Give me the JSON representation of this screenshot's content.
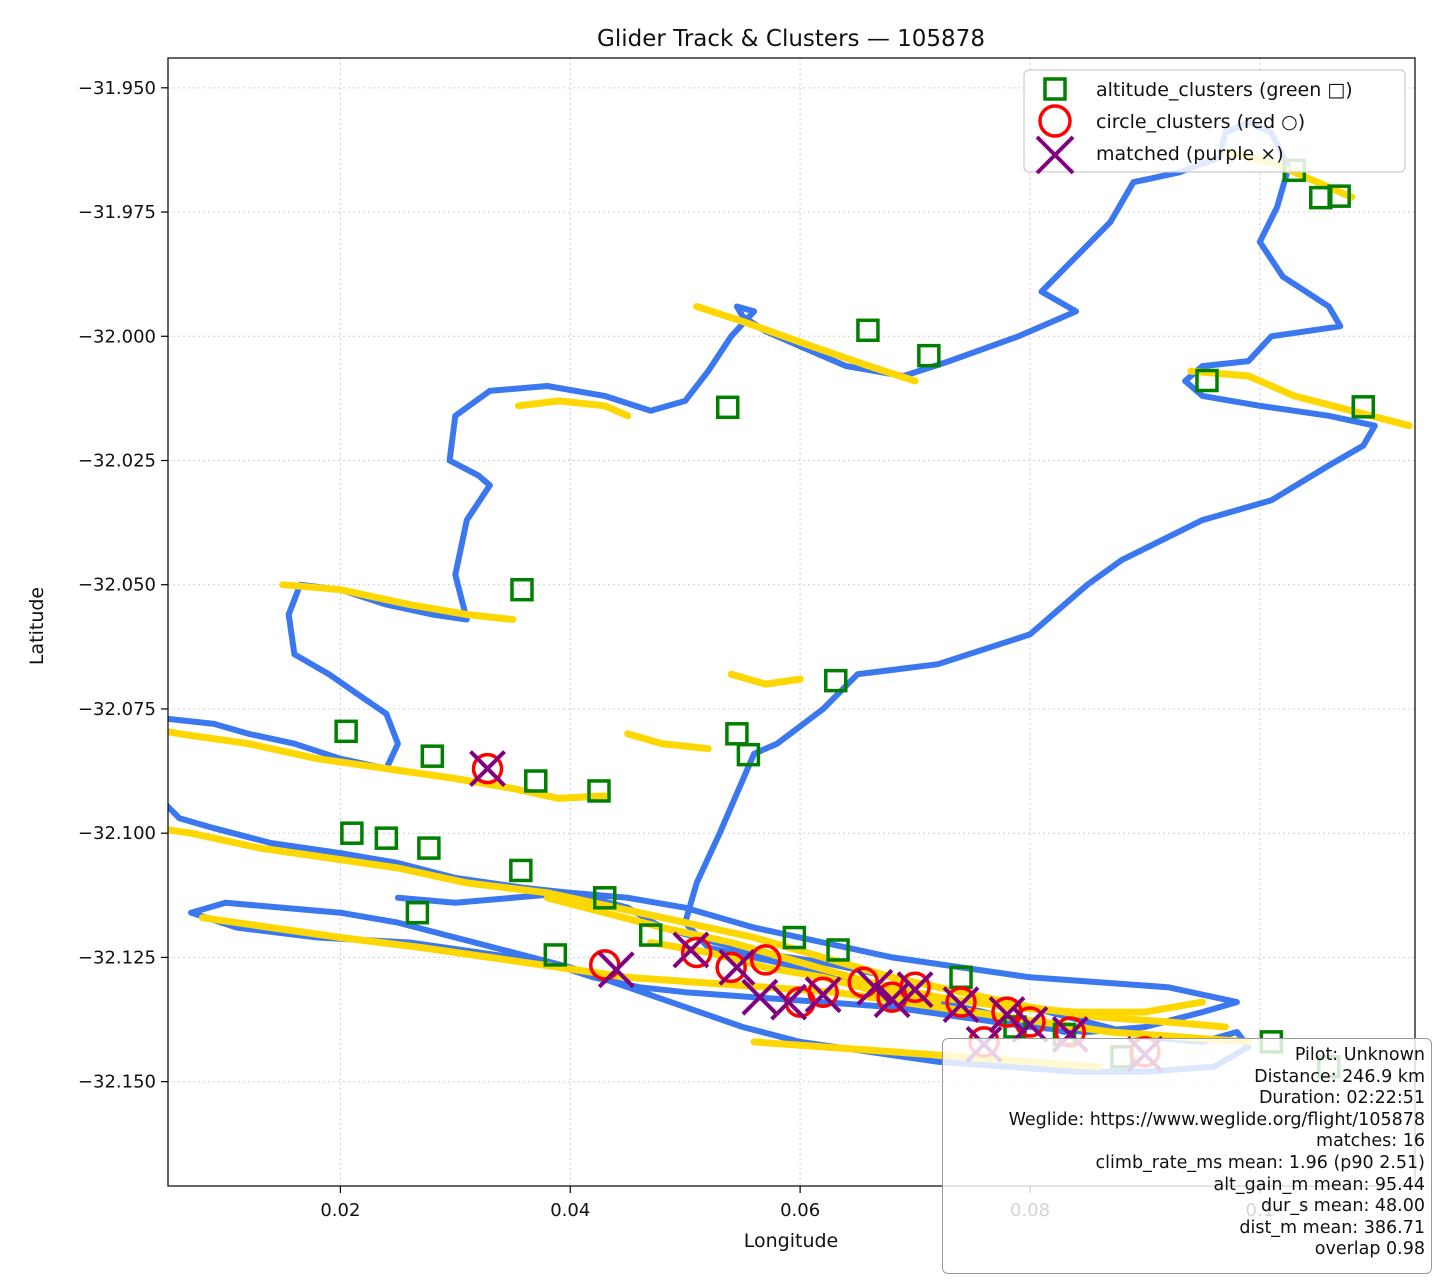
{
  "chart_data": {
    "type": "scatter",
    "title": "Glider Track & Clusters — 105878",
    "xlabel": "Longitude",
    "ylabel": "Latitude",
    "xlim": [
      0.005,
      0.1135
    ],
    "ylim": [
      -32.171,
      -31.944
    ],
    "x_ticks": [
      0.02,
      0.04,
      0.06,
      0.08,
      0.1
    ],
    "x_tick_labels": [
      "0.02",
      "0.04",
      "0.06",
      "0.08",
      "0.1"
    ],
    "y_ticks": [
      -31.95,
      -31.975,
      -32.0,
      -32.025,
      -32.05,
      -32.075,
      -32.1,
      -32.125,
      -32.15
    ],
    "y_tick_labels": [
      "−31.950",
      "−31.975",
      "−32.000",
      "−32.025",
      "−32.050",
      "−32.075",
      "−32.100",
      "−32.125",
      "−32.150"
    ],
    "grid": true,
    "legend_position": "top-right",
    "colors": {
      "track": "#3b78f0",
      "thermal": "#ffd700",
      "altitude_clusters": "#007f00",
      "circle_clusters": "#ff0000",
      "matched": "#800080"
    },
    "track": [
      [
        0.083,
        -32.14
      ],
      [
        0.076,
        -32.136
      ],
      [
        0.07,
        -32.133
      ],
      [
        0.065,
        -32.13
      ],
      [
        0.06,
        -32.127
      ],
      [
        0.056,
        -32.125
      ],
      [
        0.052,
        -32.123
      ],
      [
        0.05,
        -32.118
      ],
      [
        0.051,
        -32.11
      ],
      [
        0.053,
        -32.1
      ],
      [
        0.0545,
        -32.092
      ],
      [
        0.056,
        -32.084
      ],
      [
        0.058,
        -32.082
      ],
      [
        0.062,
        -32.075
      ],
      [
        0.065,
        -32.068
      ],
      [
        0.072,
        -32.066
      ],
      [
        0.08,
        -32.06
      ],
      [
        0.085,
        -32.05
      ],
      [
        0.088,
        -32.045
      ],
      [
        0.095,
        -32.037
      ],
      [
        0.101,
        -32.033
      ],
      [
        0.106,
        -32.026
      ],
      [
        0.109,
        -32.022
      ],
      [
        0.11,
        -32.018
      ],
      [
        0.106,
        -32.016
      ],
      [
        0.1,
        -32.014
      ],
      [
        0.095,
        -32.012
      ],
      [
        0.0935,
        -32.009
      ],
      [
        0.095,
        -32.006
      ],
      [
        0.099,
        -32.005
      ],
      [
        0.101,
        -32.0
      ],
      [
        0.104,
        -31.999
      ],
      [
        0.107,
        -31.998
      ],
      [
        0.106,
        -31.994
      ],
      [
        0.102,
        -31.988
      ],
      [
        0.1,
        -31.981
      ],
      [
        0.1015,
        -31.974
      ],
      [
        0.1025,
        -31.966
      ],
      [
        0.101,
        -31.959
      ],
      [
        0.099,
        -31.957
      ],
      [
        0.097,
        -31.959
      ],
      [
        0.0965,
        -31.964
      ],
      [
        0.093,
        -31.967
      ],
      [
        0.089,
        -31.969
      ],
      [
        0.087,
        -31.977
      ],
      [
        0.084,
        -31.984
      ],
      [
        0.081,
        -31.991
      ],
      [
        0.084,
        -31.995
      ],
      [
        0.079,
        -32.0
      ],
      [
        0.073,
        -32.005
      ],
      [
        0.069,
        -32.008
      ],
      [
        0.064,
        -32.006
      ],
      [
        0.06,
        -32.002
      ],
      [
        0.057,
        -31.999
      ],
      [
        0.055,
        -31.996
      ],
      [
        0.0545,
        -31.994
      ],
      [
        0.056,
        -31.995
      ],
      [
        0.054,
        -32.0
      ],
      [
        0.052,
        -32.007
      ],
      [
        0.05,
        -32.013
      ],
      [
        0.047,
        -32.015
      ],
      [
        0.043,
        -32.012
      ],
      [
        0.038,
        -32.01
      ],
      [
        0.033,
        -32.011
      ],
      [
        0.03,
        -32.016
      ],
      [
        0.0295,
        -32.025
      ],
      [
        0.032,
        -32.028
      ],
      [
        0.033,
        -32.03
      ],
      [
        0.031,
        -32.037
      ],
      [
        0.03,
        -32.048
      ],
      [
        0.031,
        -32.057
      ],
      [
        0.028,
        -32.056
      ],
      [
        0.024,
        -32.054
      ],
      [
        0.02,
        -32.051
      ],
      [
        0.0165,
        -32.05
      ],
      [
        0.0155,
        -32.056
      ],
      [
        0.016,
        -32.064
      ],
      [
        0.019,
        -32.068
      ],
      [
        0.0215,
        -32.072
      ],
      [
        0.024,
        -32.076
      ],
      [
        0.025,
        -32.082
      ],
      [
        0.024,
        -32.087
      ],
      [
        0.02,
        -32.085
      ],
      [
        0.016,
        -32.082
      ],
      [
        0.012,
        -32.08
      ],
      [
        0.009,
        -32.078
      ],
      [
        0.005,
        -32.077
      ],
      [
        0.003,
        -32.08
      ],
      [
        -0.0015,
        -32.084
      ],
      [
        0.003,
        -32.09
      ],
      [
        0.006,
        -32.097
      ],
      [
        0.009,
        -32.099
      ],
      [
        0.014,
        -32.102
      ],
      [
        0.02,
        -32.104
      ],
      [
        0.025,
        -32.106
      ],
      [
        0.03,
        -32.109
      ],
      [
        0.036,
        -32.111
      ],
      [
        0.04,
        -32.112
      ],
      [
        0.045,
        -32.115
      ],
      [
        0.048,
        -32.119
      ],
      [
        0.051,
        -32.121
      ],
      [
        0.056,
        -32.124
      ],
      [
        0.062,
        -32.126
      ],
      [
        0.068,
        -32.129
      ],
      [
        0.074,
        -32.132
      ],
      [
        0.08,
        -32.135
      ],
      [
        0.085,
        -32.138
      ],
      [
        0.09,
        -32.141
      ],
      [
        0.095,
        -32.142
      ],
      [
        0.098,
        -32.14
      ],
      [
        0.099,
        -32.143
      ],
      [
        0.096,
        -32.147
      ],
      [
        0.09,
        -32.148
      ],
      [
        0.084,
        -32.148
      ],
      [
        0.078,
        -32.147
      ],
      [
        0.072,
        -32.146
      ],
      [
        0.066,
        -32.144
      ],
      [
        0.06,
        -32.142
      ],
      [
        0.055,
        -32.139
      ],
      [
        0.05,
        -32.135
      ],
      [
        0.045,
        -32.131
      ],
      [
        0.04,
        -32.127
      ],
      [
        0.035,
        -32.124
      ],
      [
        0.03,
        -32.121
      ],
      [
        0.025,
        -32.118
      ],
      [
        0.02,
        -32.116
      ],
      [
        0.015,
        -32.115
      ],
      [
        0.01,
        -32.114
      ],
      [
        0.007,
        -32.116
      ],
      [
        0.011,
        -32.119
      ],
      [
        0.018,
        -32.121
      ],
      [
        0.026,
        -32.122
      ],
      [
        0.032,
        -32.124
      ],
      [
        0.038,
        -32.126
      ],
      [
        0.042,
        -32.129
      ],
      [
        0.046,
        -32.131
      ],
      [
        0.05,
        -32.132
      ],
      [
        0.056,
        -32.133
      ],
      [
        0.062,
        -32.134
      ],
      [
        0.068,
        -32.135
      ],
      [
        0.074,
        -32.137
      ],
      [
        0.08,
        -32.139
      ],
      [
        0.085,
        -32.14
      ],
      [
        0.09,
        -32.139
      ],
      [
        0.095,
        -32.136
      ],
      [
        0.098,
        -32.134
      ],
      [
        0.092,
        -32.131
      ],
      [
        0.086,
        -32.13
      ],
      [
        0.08,
        -32.129
      ],
      [
        0.074,
        -32.127
      ],
      [
        0.068,
        -32.125
      ],
      [
        0.062,
        -32.122
      ],
      [
        0.056,
        -32.119
      ],
      [
        0.05,
        -32.115
      ],
      [
        0.045,
        -32.113
      ],
      [
        0.04,
        -32.112
      ],
      [
        0.035,
        -32.113
      ],
      [
        0.03,
        -32.114
      ],
      [
        0.025,
        -32.113
      ]
    ],
    "thermals": [
      [
        [
          0.001,
          -32.078
        ],
        [
          0.006,
          -32.08
        ],
        [
          0.012,
          -32.082
        ],
        [
          0.018,
          -32.085
        ],
        [
          0.024,
          -32.087
        ],
        [
          0.03,
          -32.089
        ],
        [
          0.035,
          -32.091
        ],
        [
          0.039,
          -32.093
        ],
        [
          0.043,
          -32.0925
        ]
      ],
      [
        [
          0.015,
          -32.05
        ],
        [
          0.02,
          -32.051
        ],
        [
          0.026,
          -32.054
        ],
        [
          0.031,
          -32.056
        ],
        [
          0.035,
          -32.057
        ]
      ],
      [
        [
          0.0355,
          -32.014
        ],
        [
          0.039,
          -32.013
        ],
        [
          0.043,
          -32.014
        ],
        [
          0.045,
          -32.016
        ]
      ],
      [
        [
          0.051,
          -31.994
        ],
        [
          0.055,
          -31.997
        ],
        [
          0.061,
          -32.002
        ],
        [
          0.066,
          -32.006
        ],
        [
          0.07,
          -32.009
        ]
      ],
      [
        [
          0.094,
          -32.007
        ],
        [
          0.099,
          -32.008
        ],
        [
          0.103,
          -32.012
        ],
        [
          0.108,
          -32.015
        ],
        [
          0.113,
          -32.018
        ]
      ],
      [
        [
          0.097,
          -31.963
        ],
        [
          0.101,
          -31.965
        ],
        [
          0.105,
          -31.969
        ],
        [
          0.108,
          -31.972
        ]
      ],
      [
        [
          0.054,
          -32.068
        ],
        [
          0.057,
          -32.07
        ],
        [
          0.06,
          -32.069
        ]
      ],
      [
        [
          0.045,
          -32.08
        ],
        [
          0.048,
          -32.082
        ],
        [
          0.052,
          -32.083
        ]
      ],
      [
        [
          0.001,
          -32.098
        ],
        [
          0.007,
          -32.1
        ],
        [
          0.013,
          -32.103
        ],
        [
          0.019,
          -32.105
        ],
        [
          0.025,
          -32.107
        ],
        [
          0.031,
          -32.11
        ],
        [
          0.038,
          -32.112
        ],
        [
          0.044,
          -32.115
        ],
        [
          0.05,
          -32.118
        ],
        [
          0.056,
          -32.121
        ],
        [
          0.062,
          -32.125
        ],
        [
          0.068,
          -32.129
        ],
        [
          0.074,
          -32.132
        ],
        [
          0.08,
          -32.135
        ],
        [
          0.086,
          -32.137
        ],
        [
          0.092,
          -32.138
        ],
        [
          0.097,
          -32.139
        ]
      ],
      [
        [
          0.008,
          -32.117
        ],
        [
          0.014,
          -32.119
        ],
        [
          0.02,
          -32.121
        ],
        [
          0.027,
          -32.123
        ],
        [
          0.033,
          -32.125
        ],
        [
          0.039,
          -32.127
        ],
        [
          0.045,
          -32.129
        ],
        [
          0.051,
          -32.13
        ],
        [
          0.057,
          -32.131
        ],
        [
          0.063,
          -32.132
        ],
        [
          0.069,
          -32.134
        ],
        [
          0.075,
          -32.136
        ],
        [
          0.081,
          -32.138
        ],
        [
          0.087,
          -32.14
        ],
        [
          0.093,
          -32.141
        ],
        [
          0.099,
          -32.142
        ]
      ],
      [
        [
          0.038,
          -32.113
        ],
        [
          0.043,
          -32.116
        ],
        [
          0.048,
          -32.119
        ],
        [
          0.054,
          -32.122
        ],
        [
          0.06,
          -32.126
        ],
        [
          0.066,
          -32.13
        ],
        [
          0.072,
          -32.133
        ],
        [
          0.078,
          -32.135
        ],
        [
          0.084,
          -32.136
        ],
        [
          0.09,
          -32.136
        ],
        [
          0.095,
          -32.134
        ]
      ],
      [
        [
          0.047,
          -32.122
        ],
        [
          0.052,
          -32.124
        ],
        [
          0.057,
          -32.127
        ],
        [
          0.062,
          -32.129
        ],
        [
          0.067,
          -32.132
        ],
        [
          0.072,
          -32.134
        ]
      ],
      [
        [
          0.056,
          -32.142
        ],
        [
          0.062,
          -32.143
        ],
        [
          0.068,
          -32.144
        ],
        [
          0.074,
          -32.145
        ],
        [
          0.08,
          -32.146
        ],
        [
          0.086,
          -32.147
        ]
      ]
    ],
    "altitude_clusters": [
      [
        0.0205,
        -32.0795
      ],
      [
        0.028,
        -32.0845
      ],
      [
        0.037,
        -32.0895
      ],
      [
        0.0425,
        -32.0915
      ],
      [
        0.0358,
        -32.051
      ],
      [
        0.0537,
        -32.0143
      ],
      [
        0.0659,
        -31.9988
      ],
      [
        0.0712,
        -32.0039
      ],
      [
        0.0954,
        -32.0089
      ],
      [
        0.103,
        -31.9666
      ],
      [
        0.1053,
        -31.9721
      ],
      [
        0.1069,
        -31.9718
      ],
      [
        0.109,
        -32.0142
      ],
      [
        0.0631,
        -32.0693
      ],
      [
        0.0545,
        -32.08
      ],
      [
        0.0555,
        -32.0842
      ],
      [
        0.021,
        -32.1
      ],
      [
        0.024,
        -32.101
      ],
      [
        0.0277,
        -32.103
      ],
      [
        0.0357,
        -32.1075
      ],
      [
        0.043,
        -32.113
      ],
      [
        0.0267,
        -32.116
      ],
      [
        0.0387,
        -32.1245
      ],
      [
        0.047,
        -32.1205
      ],
      [
        0.0595,
        -32.121
      ],
      [
        0.0633,
        -32.1235
      ],
      [
        0.074,
        -32.129
      ],
      [
        0.0787,
        -32.139
      ],
      [
        0.088,
        -32.145
      ],
      [
        0.101,
        -32.142
      ],
      [
        0.106,
        -32.147
      ],
      [
        0.083,
        -32.1405
      ]
    ],
    "circle_clusters": [
      [
        0.0328,
        -32.087
      ],
      [
        0.043,
        -32.1265
      ],
      [
        0.057,
        -32.1255
      ],
      [
        0.06,
        -32.134
      ],
      [
        0.0655,
        -32.13
      ],
      [
        0.07,
        -32.131
      ],
      [
        0.078,
        -32.136
      ],
      [
        0.08,
        -32.138
      ],
      [
        0.0835,
        -32.14
      ],
      [
        0.051,
        -32.124
      ],
      [
        0.054,
        -32.127
      ],
      [
        0.062,
        -32.132
      ],
      [
        0.068,
        -32.133
      ],
      [
        0.074,
        -32.134
      ],
      [
        0.09,
        -32.144
      ],
      [
        0.076,
        -32.142
      ]
    ],
    "matched": [
      [
        0.0328,
        -32.087
      ],
      [
        0.044,
        -32.1275
      ],
      [
        0.0565,
        -32.133
      ],
      [
        0.0505,
        -32.1235
      ],
      [
        0.0545,
        -32.127
      ],
      [
        0.062,
        -32.1325
      ],
      [
        0.0665,
        -32.131
      ],
      [
        0.07,
        -32.1315
      ],
      [
        0.074,
        -32.1345
      ],
      [
        0.078,
        -32.1365
      ],
      [
        0.08,
        -32.1385
      ],
      [
        0.0835,
        -32.1405
      ],
      [
        0.09,
        -32.1445
      ],
      [
        0.076,
        -32.1425
      ],
      [
        0.059,
        -32.134
      ],
      [
        0.068,
        -32.1335
      ]
    ],
    "legend": [
      {
        "key": "altitude_clusters",
        "label": "altitude_clusters (green □)"
      },
      {
        "key": "circle_clusters",
        "label": "circle_clusters (red ○)"
      },
      {
        "key": "matched",
        "label": "matched (purple ×)"
      }
    ],
    "info_box": [
      "Pilot: Unknown",
      "Distance: 246.9 km",
      "Duration: 02:22:51",
      "Weglide: https://www.weglide.org/flight/105878",
      "matches: 16",
      "climb_rate_ms mean: 1.96 (p90 2.51)",
      "alt_gain_m mean: 95.44",
      "dur_s mean: 48.00",
      "dist_m mean: 386.71",
      "overlap 0.98"
    ]
  }
}
